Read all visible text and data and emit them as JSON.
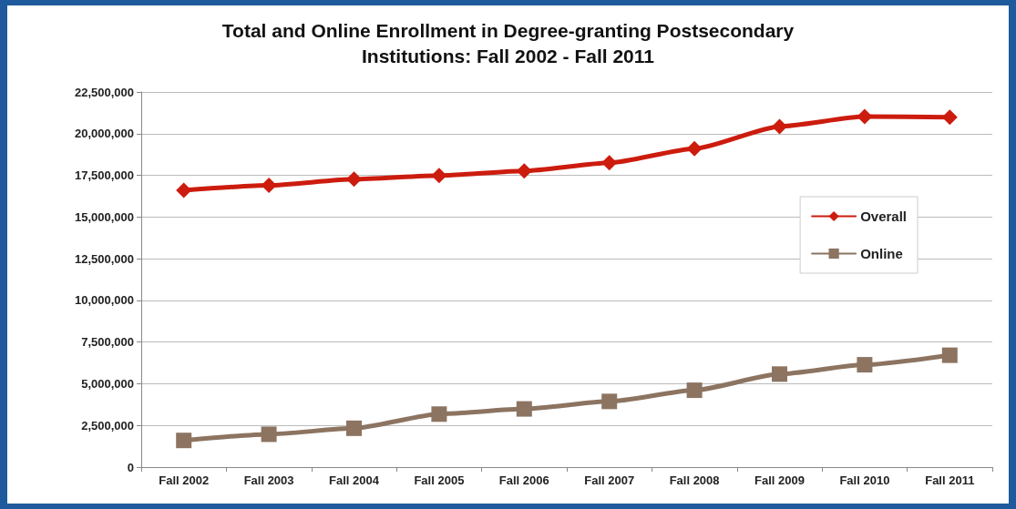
{
  "chart_data": {
    "type": "line",
    "title": "Total and Online Enrollment in Degree-granting Postsecondary\nInstitutions: Fall 2002 - Fall 2011",
    "categories": [
      "Fall 2002",
      "Fall 2003",
      "Fall 2004",
      "Fall 2005",
      "Fall 2006",
      "Fall 2007",
      "Fall 2008",
      "Fall 2009",
      "Fall 2010",
      "Fall 2011"
    ],
    "series": [
      {
        "name": "Overall",
        "color": "#cc1c0e",
        "marker": "diamond",
        "values": [
          16600000,
          16900000,
          17270000,
          17490000,
          17760000,
          18250000,
          19100000,
          20430000,
          21020000,
          20990000
        ]
      },
      {
        "name": "Online",
        "color": "#8c7461",
        "marker": "square",
        "values": [
          1600000,
          1970000,
          2330000,
          3180000,
          3490000,
          3940000,
          4610000,
          5580000,
          6140000,
          6710000
        ]
      }
    ],
    "ylim": [
      0,
      22500000
    ],
    "yticks": [
      {
        "value": 0,
        "label": "0"
      },
      {
        "value": 2500000,
        "label": "2,500,000"
      },
      {
        "value": 5000000,
        "label": "5,000,000"
      },
      {
        "value": 7500000,
        "label": "7,500,000"
      },
      {
        "value": 10000000,
        "label": "10,000,000"
      },
      {
        "value": 12500000,
        "label": "12,500,000"
      },
      {
        "value": 15000000,
        "label": "15,000,000"
      },
      {
        "value": 17500000,
        "label": "17,500,000"
      },
      {
        "value": 20000000,
        "label": "20,000,000"
      },
      {
        "value": 22500000,
        "label": "22,500,000"
      }
    ],
    "grid": "y",
    "legend": "right",
    "line_style": "solid"
  }
}
